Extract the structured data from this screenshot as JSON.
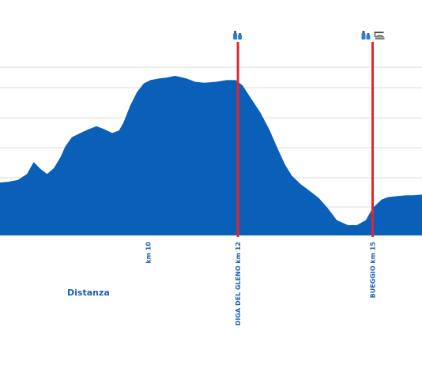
{
  "chart_data": {
    "type": "area",
    "xlabel": "Distanza",
    "ylabel": "",
    "xlim": [
      6.7,
      16.1
    ],
    "ylim": [
      0,
      1.0
    ],
    "grid": "horizontal",
    "profile": {
      "x": [
        6.7,
        6.9,
        7.1,
        7.3,
        7.45,
        7.6,
        7.75,
        7.9,
        8.05,
        8.15,
        8.3,
        8.45,
        8.65,
        8.85,
        9.0,
        9.2,
        9.35,
        9.45,
        9.6,
        9.75,
        9.9,
        10.05,
        10.25,
        10.4,
        10.6,
        10.85,
        11.05,
        11.25,
        11.5,
        11.75,
        11.95,
        12.1,
        12.3,
        12.5,
        12.7,
        12.9,
        13.05,
        13.2,
        13.4,
        13.6,
        13.8,
        14.0,
        14.2,
        14.45,
        14.65,
        14.85,
        15.0,
        15.2,
        15.35,
        15.55,
        15.75,
        15.9,
        16.1
      ],
      "y": [
        0.31,
        0.315,
        0.325,
        0.36,
        0.43,
        0.39,
        0.36,
        0.395,
        0.46,
        0.52,
        0.575,
        0.595,
        0.62,
        0.64,
        0.625,
        0.6,
        0.615,
        0.66,
        0.76,
        0.84,
        0.89,
        0.91,
        0.92,
        0.925,
        0.935,
        0.92,
        0.9,
        0.895,
        0.9,
        0.91,
        0.91,
        0.88,
        0.8,
        0.72,
        0.62,
        0.5,
        0.415,
        0.35,
        0.3,
        0.26,
        0.22,
        0.16,
        0.09,
        0.06,
        0.06,
        0.09,
        0.16,
        0.21,
        0.225,
        0.23,
        0.235,
        0.235,
        0.24
      ]
    },
    "tick_labels": [
      {
        "x": 10.0,
        "text": "km 10"
      }
    ],
    "markers": [
      {
        "x": 12.0,
        "text": "DIGA DEL GLENO km 12",
        "icons": [
          "water-bottle-icon"
        ]
      },
      {
        "x": 15.0,
        "text": "BUEGGIO km 15",
        "icons": [
          "water-bottle-icon",
          "food-service-icon"
        ]
      }
    ],
    "colors": {
      "area": "#0a5fb8",
      "marker_line": "#e8232f",
      "grid": "#dcdcdc",
      "label": "#1a5fb4",
      "icon": "#2a7fd4"
    }
  }
}
